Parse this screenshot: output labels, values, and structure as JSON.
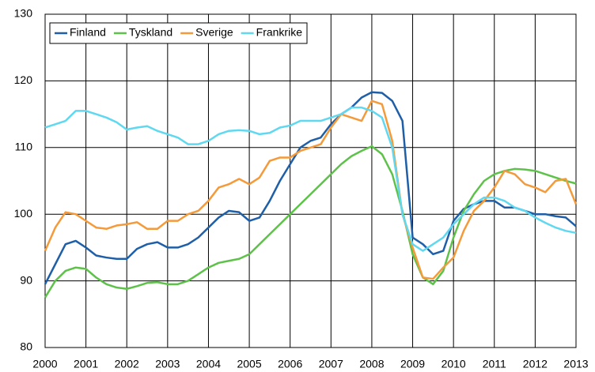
{
  "chart_data": {
    "type": "line",
    "x": [
      2000,
      2000.25,
      2000.5,
      2000.75,
      2001,
      2001.25,
      2001.5,
      2001.75,
      2002,
      2002.25,
      2002.5,
      2002.75,
      2003,
      2003.25,
      2003.5,
      2003.75,
      2004,
      2004.25,
      2004.5,
      2004.75,
      2005,
      2005.25,
      2005.5,
      2005.75,
      2006,
      2006.25,
      2006.5,
      2006.75,
      2007,
      2007.25,
      2007.5,
      2007.75,
      2008,
      2008.25,
      2008.5,
      2008.75,
      2009,
      2009.25,
      2009.5,
      2009.75,
      2010,
      2010.25,
      2010.5,
      2010.75,
      2011,
      2011.25,
      2011.5,
      2011.75,
      2012,
      2012.25,
      2012.5,
      2012.75,
      2013
    ],
    "series": [
      {
        "name": "Finland",
        "color": "#1f5fa8",
        "values": [
          89.5,
          92.5,
          95.5,
          96,
          95,
          93.8,
          93.5,
          93.3,
          93.3,
          94.8,
          95.5,
          95.8,
          95,
          95,
          95.5,
          96.5,
          98,
          99.5,
          100.5,
          100.3,
          99,
          99.5,
          102,
          105,
          107.5,
          110,
          111,
          111.5,
          113.5,
          115,
          116,
          117.5,
          118.3,
          118.2,
          117,
          114,
          96.5,
          95.5,
          94,
          94.5,
          99,
          100.8,
          101.5,
          102,
          102,
          101,
          101,
          100.5,
          100,
          100,
          99.7,
          99.5,
          98.2
        ]
      },
      {
        "name": "Tyskland",
        "color": "#5ec24a",
        "values": [
          87.5,
          90,
          91.5,
          92,
          91.8,
          90.5,
          89.5,
          89,
          88.8,
          89.2,
          89.7,
          89.8,
          89.5,
          89.5,
          90,
          91,
          92,
          92.7,
          93,
          93.3,
          94,
          95.5,
          97,
          98.5,
          100,
          101.5,
          103,
          104.5,
          106,
          107.5,
          108.7,
          109.5,
          110.2,
          109,
          106,
          100.5,
          94,
          90.5,
          89.5,
          91.5,
          96.5,
          100.5,
          103,
          105,
          106,
          106.5,
          106.8,
          106.7,
          106.5,
          106,
          105.5,
          105,
          104.6
        ]
      },
      {
        "name": "Sverige",
        "color": "#f59a3a",
        "values": [
          94.5,
          98,
          100.3,
          100,
          99,
          98,
          97.8,
          98.3,
          98.5,
          98.8,
          97.8,
          97.8,
          99,
          99,
          100,
          100.5,
          102,
          104,
          104.5,
          105.3,
          104.5,
          105.5,
          108,
          108.5,
          108.5,
          109.5,
          110,
          110.5,
          113,
          115,
          114.5,
          114,
          117,
          116.5,
          111,
          100,
          95,
          90.5,
          90.3,
          92,
          93.5,
          97.5,
          100.5,
          102,
          104,
          106.5,
          106,
          104.5,
          104,
          103.3,
          105,
          105.3,
          101.5
        ]
      },
      {
        "name": "Frankrike",
        "color": "#5fd8f0",
        "values": [
          113,
          113.5,
          114,
          115.5,
          115.5,
          115,
          114.5,
          113.8,
          112.7,
          113,
          113.2,
          112.5,
          112,
          111.5,
          110.5,
          110.5,
          111,
          112,
          112.5,
          112.6,
          112.5,
          112,
          112.2,
          113,
          113.3,
          114,
          114,
          114,
          114.5,
          115,
          116,
          116,
          115.5,
          114.5,
          110,
          100,
          95.5,
          94.5,
          95.5,
          96.5,
          98.5,
          100,
          101.5,
          102.5,
          102.5,
          102,
          101,
          100.5,
          99.5,
          98.7,
          98,
          97.5,
          97.2
        ]
      }
    ],
    "xlim": [
      2000,
      2013
    ],
    "xticks": [
      2000,
      2001,
      2002,
      2003,
      2004,
      2005,
      2006,
      2007,
      2008,
      2009,
      2010,
      2011,
      2012,
      2013
    ],
    "ylim": [
      80,
      130
    ],
    "yticks": [
      80,
      90,
      100,
      110,
      120,
      130
    ],
    "grid": true,
    "legend": "upper left"
  }
}
